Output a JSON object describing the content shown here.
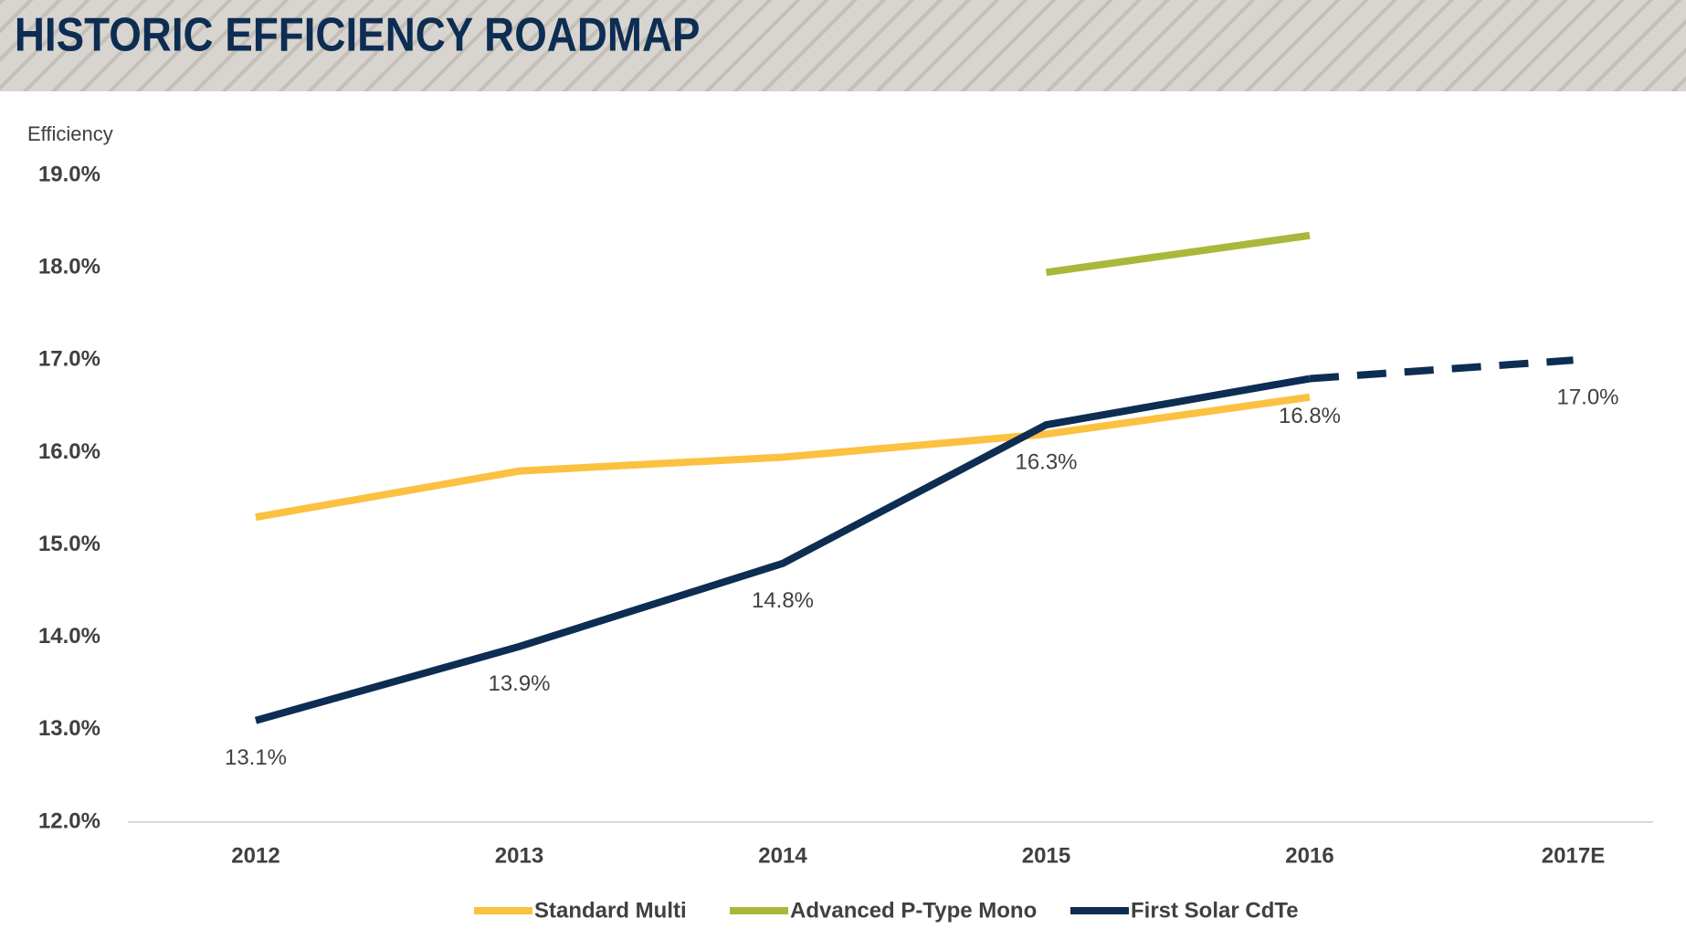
{
  "chart_data": {
    "type": "line",
    "title": "HISTORIC EFFICIENCY ROADMAP",
    "y_label": "Efficiency",
    "categories": [
      "2012",
      "2013",
      "2014",
      "2015",
      "2016",
      "2017E"
    ],
    "series": [
      {
        "name": "Standard Multi",
        "color": "#fbc140",
        "values": [
          15.3,
          15.8,
          15.95,
          16.2,
          16.6,
          null
        ]
      },
      {
        "name": "Advanced P-Type Mono",
        "color": "#a9b83a",
        "values": [
          null,
          null,
          null,
          17.95,
          18.35,
          null
        ]
      },
      {
        "name": "First Solar CdTe",
        "color": "#0d2d52",
        "values": [
          13.1,
          13.9,
          14.8,
          16.3,
          16.8,
          17.0
        ],
        "value_labels": [
          "13.1%",
          "13.9%",
          "14.8%",
          "16.3%",
          "16.8%",
          "17.0%"
        ],
        "dashed_to": "2017E"
      }
    ],
    "ylim": [
      12,
      19
    ],
    "yticks": [
      {
        "value": 12,
        "label": "12.0%"
      },
      {
        "value": 13,
        "label": "13.0%"
      },
      {
        "value": 14,
        "label": "14.0%"
      },
      {
        "value": 15,
        "label": "15.0%"
      },
      {
        "value": 16,
        "label": "16.0%"
      },
      {
        "value": 17,
        "label": "17.0%"
      },
      {
        "value": 18,
        "label": "18.0%"
      },
      {
        "value": 19,
        "label": "19.0%"
      }
    ],
    "grid": false,
    "legend": "bottom"
  }
}
